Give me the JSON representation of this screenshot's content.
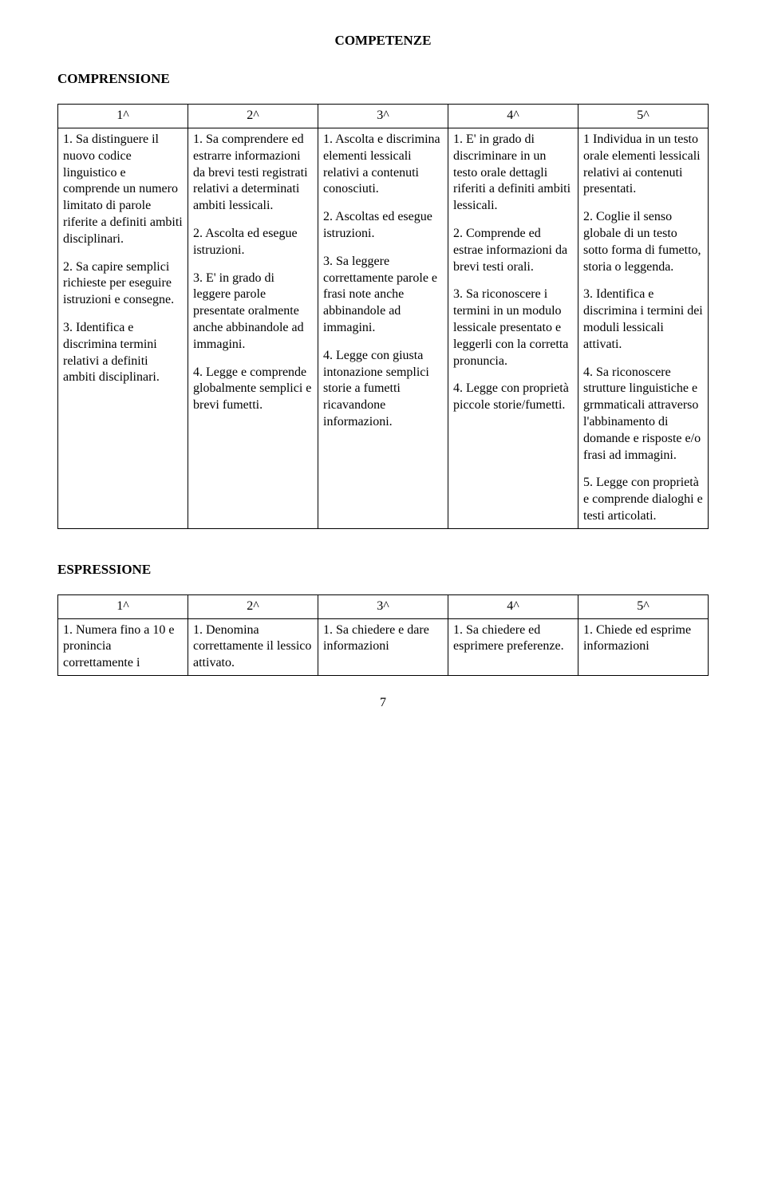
{
  "page_title": "COMPETENZE",
  "section1_title": "COMPRENSIONE",
  "section2_title": "ESPRESSIONE",
  "page_number": "7",
  "headers": [
    "1^",
    "2^",
    "3^",
    "4^",
    "5^"
  ],
  "table1": {
    "col1": [
      "1. Sa distinguere il nuovo codice linguistico e comprende un numero limitato di parole riferite a definiti ambiti disciplinari.",
      "2. Sa capire semplici richieste per eseguire istruzioni e consegne.",
      "3. Identifica e discrimina termini relativi a definiti ambiti disciplinari."
    ],
    "col2": [
      "1. Sa comprendere ed estrarre informazioni da brevi testi registrati relativi a determinati ambiti lessicali.",
      "2. Ascolta ed esegue istruzioni.",
      "3. E' in grado di leggere parole presentate oralmente anche abbinandole ad immagini.",
      "4. Legge e comprende globalmente semplici e brevi fumetti."
    ],
    "col3": [
      "1. Ascolta e discrimina elementi lessicali relativi a contenuti conosciuti.",
      "2. Ascoltas ed esegue istruzioni.",
      "3. Sa leggere correttamente parole e frasi note anche abbinandole ad immagini.",
      "4. Legge con giusta intonazione semplici storie a fumetti ricavandone informazioni."
    ],
    "col4": [
      "1. E' in grado di discriminare in un testo orale dettagli riferiti a definiti ambiti lessicali.",
      "2. Comprende ed estrae informazioni da brevi testi orali.",
      "3. Sa riconoscere i termini in un modulo lessicale presentato e leggerli con la corretta pronuncia.",
      "4. Legge con proprietà piccole storie/fumetti."
    ],
    "col5": [
      "1 Individua in un testo orale elementi lessicali relativi ai contenuti presentati.",
      "2. Coglie il senso globale di un testo sotto forma di fumetto, storia o leggenda.",
      "3. Identifica e discrimina i termini dei moduli lessicali attivati.",
      "4. Sa riconoscere strutture linguistiche e grmmaticali attraverso l'abbinamento di domande e risposte e/o frasi ad immagini.",
      "5. Legge con proprietà e comprende dialoghi e testi articolati."
    ]
  },
  "table2": {
    "col1": [
      "1. Numera fino a 10 e pronincia correttamente i"
    ],
    "col2": [
      "1. Denomina correttamente il lessico attivato."
    ],
    "col3": [
      "1. Sa chiedere e dare informazioni"
    ],
    "col4": [
      "1. Sa chiedere ed esprimere preferenze."
    ],
    "col5": [
      "1. Chiede ed esprime informazioni"
    ]
  }
}
